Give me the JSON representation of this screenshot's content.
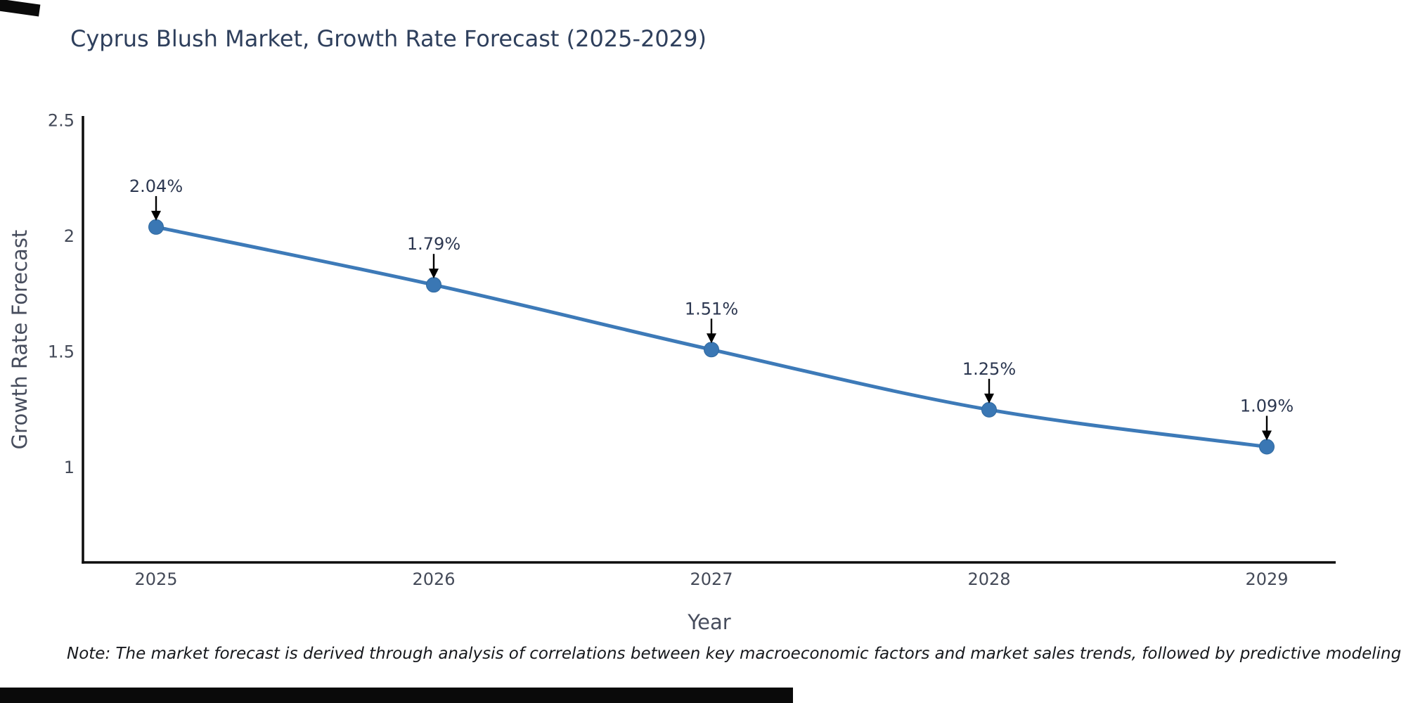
{
  "chart_data": {
    "type": "line",
    "title": "Cyprus Blush Market, Growth Rate Forecast (2025-2029)",
    "xlabel": "Year",
    "ylabel": "Growth Rate Forecast",
    "x": [
      2025,
      2026,
      2027,
      2028,
      2029
    ],
    "values": [
      2.04,
      1.79,
      1.51,
      1.25,
      1.09
    ],
    "point_labels": [
      "2.04%",
      "1.79%",
      "1.51%",
      "1.25%",
      "1.09%"
    ],
    "yticks": [
      2.5,
      2,
      1.5,
      1
    ],
    "ytick_labels": [
      "2.5",
      "2",
      "1.5",
      "1"
    ],
    "ylim": [
      0.59,
      2.52
    ],
    "grid": false,
    "legend": false,
    "line_shape": "spline",
    "line_color": "#3d7ab8",
    "marker_color": "#3a77b4",
    "marker_edge_color": "#30699f",
    "axis_color": "#0d0d0d",
    "tick_color": "#444a58",
    "annotation_text_color": "#2c3750",
    "annotation_arrow_color": "#000000"
  },
  "note": {
    "text": "Note: The market forecast is derived through analysis of correlations between key macroeconomic factors and market sales trends, followed by predictive modeling to project future sales"
  }
}
